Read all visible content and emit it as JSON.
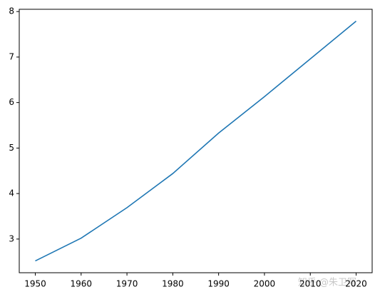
{
  "chart_data": {
    "type": "line",
    "x": [
      1950,
      1960,
      1970,
      1980,
      1990,
      2000,
      2010,
      2020
    ],
    "series": [
      {
        "color": "#1f77b4",
        "values": [
          2.52,
          3.02,
          3.69,
          4.44,
          5.33,
          6.13,
          6.96,
          7.79
        ]
      }
    ],
    "xlim": [
      1946.5,
      2023.5
    ],
    "xticks": [
      1950,
      1960,
      1970,
      1980,
      1990,
      2000,
      2010,
      2020
    ],
    "ylim": [
      2.26,
      8.05
    ],
    "yticks": [
      3,
      4,
      5,
      6,
      7,
      8
    ],
    "grid": false
  },
  "watermark": "知乎 @朱卫写"
}
